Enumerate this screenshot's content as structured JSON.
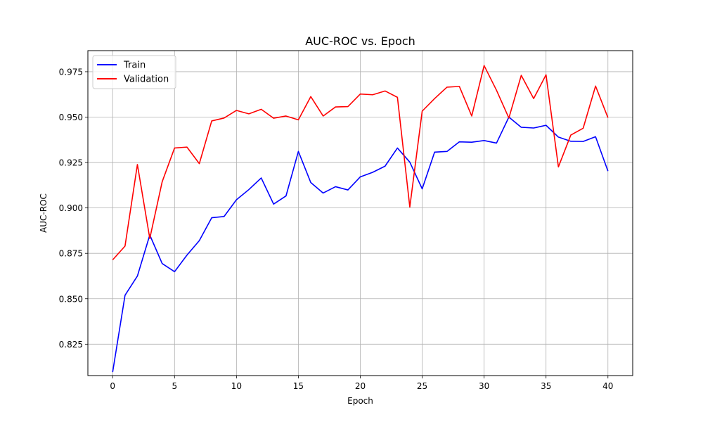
{
  "chart_data": {
    "type": "line",
    "title": "AUC-ROC vs. Epoch",
    "xlabel": "Epoch",
    "ylabel": "AUC-ROC",
    "xlim": [
      -2,
      42
    ],
    "ylim": [
      0.8077,
      0.9866
    ],
    "grid": true,
    "legend_position": "top-left",
    "x": [
      0,
      1,
      2,
      3,
      4,
      5,
      6,
      7,
      8,
      9,
      10,
      11,
      12,
      13,
      14,
      15,
      16,
      17,
      18,
      19,
      20,
      21,
      22,
      23,
      24,
      25,
      26,
      27,
      28,
      29,
      30,
      31,
      32,
      33,
      34,
      35,
      36,
      37,
      38,
      39,
      40
    ],
    "xticks": [
      0,
      5,
      10,
      15,
      20,
      25,
      30,
      35,
      40
    ],
    "xtick_labels": [
      "0",
      "5",
      "10",
      "15",
      "20",
      "25",
      "30",
      "35",
      "40"
    ],
    "yticks": [
      0.825,
      0.85,
      0.875,
      0.9,
      0.925,
      0.95,
      0.975
    ],
    "ytick_labels": [
      "0.825",
      "0.850",
      "0.875",
      "0.900",
      "0.925",
      "0.950",
      "0.975"
    ],
    "series": [
      {
        "name": "Train",
        "color": "#0000ff",
        "values": [
          0.8096,
          0.8519,
          0.8625,
          0.8851,
          0.8694,
          0.8649,
          0.874,
          0.882,
          0.8946,
          0.8953,
          0.9045,
          0.9101,
          0.9165,
          0.9021,
          0.9066,
          0.9311,
          0.914,
          0.9082,
          0.9117,
          0.9099,
          0.9171,
          0.9196,
          0.923,
          0.933,
          0.9252,
          0.9105,
          0.9307,
          0.9311,
          0.9364,
          0.9362,
          0.9371,
          0.9357,
          0.95,
          0.9444,
          0.944,
          0.9455,
          0.939,
          0.9367,
          0.9366,
          0.9392,
          0.9203
        ]
      },
      {
        "name": "Validation",
        "color": "#ff0000",
        "values": [
          0.8714,
          0.879,
          0.9239,
          0.8832,
          0.9144,
          0.933,
          0.9335,
          0.9244,
          0.9479,
          0.9495,
          0.9537,
          0.9518,
          0.9543,
          0.9494,
          0.9506,
          0.9485,
          0.9613,
          0.9506,
          0.9556,
          0.9558,
          0.9627,
          0.9623,
          0.9644,
          0.9609,
          0.9005,
          0.9533,
          0.9602,
          0.9665,
          0.9669,
          0.9506,
          0.9784,
          0.9648,
          0.9495,
          0.973,
          0.9602,
          0.9733,
          0.9226,
          0.9401,
          0.9439,
          0.9671,
          0.9497
        ]
      }
    ]
  }
}
